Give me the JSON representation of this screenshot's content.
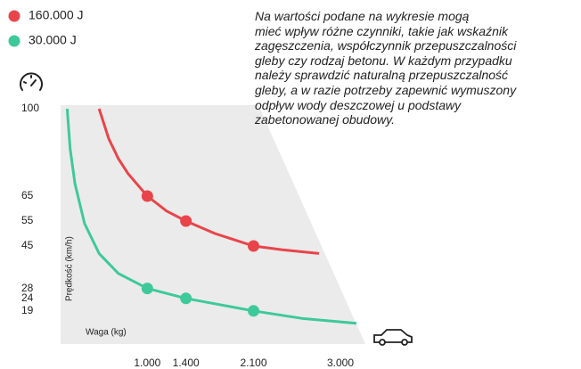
{
  "chart_data": {
    "type": "line",
    "x_label": "Waga (kg)",
    "y_label": "Prędkość (km/h)",
    "annotation": [
      "Na wartości podane na wykresie mogą",
      "mieć wpływ różne czynniki, takie jak wskaźnik",
      "zagęszczenia, współczynnik przepuszczalności",
      "gleby czy rodzaj betonu. W każdym przypadku",
      "należy sprawdzić naturalną przepuszczalność",
      "gleby, a w razie potrzeby zapewnić wymuszony",
      "odpływ wody deszczowej u podstawy",
      "zabetonowanej obudowy."
    ],
    "xlim": [
      0,
      3000
    ],
    "ylim": [
      10,
      100
    ],
    "xticks": [
      {
        "value": 1000,
        "label": "1.000"
      },
      {
        "value": 1400,
        "label": "1.400"
      },
      {
        "value": 2100,
        "label": "2.100"
      },
      {
        "value": 3000,
        "label": "3.000"
      }
    ],
    "yticks": [
      100,
      65,
      55,
      45,
      28,
      24,
      19
    ],
    "grid": false,
    "series": [
      {
        "name": "160.000 J",
        "color": "#e8454b",
        "x": [
          500,
          600,
          700,
          800,
          1000,
          1200,
          1400,
          1700,
          2100,
          2400,
          2778
        ],
        "values": [
          100,
          88,
          80,
          74,
          65,
          59,
          55,
          50,
          45,
          43.5,
          42
        ]
      },
      {
        "name": "30.000 J",
        "color": "#3ec99a",
        "x": [
          170,
          200,
          250,
          350,
          500,
          700,
          1000,
          1400,
          2100,
          2600,
          3166
        ],
        "values": [
          100,
          84,
          70,
          54,
          42,
          34,
          28,
          24,
          19,
          16,
          14
        ]
      }
    ]
  }
}
